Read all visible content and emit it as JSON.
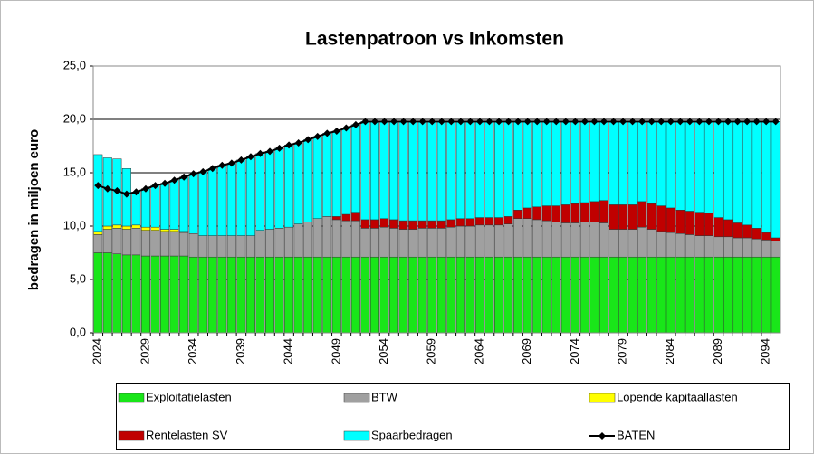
{
  "chart_data": {
    "type": "bar",
    "stacked": true,
    "title": "Lastenpatroon vs Inkomsten",
    "y_label": "bedragen in miljoen euro",
    "categories": [
      "2024",
      null,
      null,
      null,
      null,
      "2029",
      null,
      null,
      null,
      null,
      "2034",
      null,
      null,
      null,
      null,
      "2039",
      null,
      null,
      null,
      null,
      "2044",
      null,
      null,
      null,
      null,
      "2049",
      null,
      null,
      null,
      null,
      "2054",
      null,
      null,
      null,
      null,
      "2059",
      null,
      null,
      null,
      null,
      "2064",
      null,
      null,
      null,
      null,
      "2069",
      null,
      null,
      null,
      null,
      "2074",
      null,
      null,
      null,
      null,
      "2079",
      null,
      null,
      null,
      null,
      "2084",
      null,
      null,
      null,
      null,
      "2089",
      null,
      null,
      null,
      null,
      "2094",
      null
    ],
    "ylim": [
      0,
      25
    ],
    "yticks": [
      {
        "value": 0,
        "label": "0,0"
      },
      {
        "value": 5,
        "label": "5,0"
      },
      {
        "value": 10,
        "label": "10,0"
      },
      {
        "value": 15,
        "label": "15,0"
      },
      {
        "value": 20,
        "label": "20,0"
      },
      {
        "value": 25,
        "label": "25,0"
      }
    ],
    "grid": true,
    "series": [
      {
        "name": "Exploitatielasten",
        "color": "#19e619",
        "values": [
          7.5,
          7.5,
          7.4,
          7.3,
          7.3,
          7.2,
          7.2,
          7.2,
          7.2,
          7.2,
          7.1,
          7.1,
          7.1,
          7.1,
          7.1,
          7.1,
          7.1,
          7.1,
          7.1,
          7.1,
          7.1,
          7.1,
          7.1,
          7.1,
          7.1,
          7.1,
          7.1,
          7.1,
          7.1,
          7.1,
          7.1,
          7.1,
          7.1,
          7.1,
          7.1,
          7.1,
          7.1,
          7.1,
          7.1,
          7.1,
          7.1,
          7.1,
          7.1,
          7.1,
          7.1,
          7.1,
          7.1,
          7.1,
          7.1,
          7.1,
          7.1,
          7.1,
          7.1,
          7.1,
          7.1,
          7.1,
          7.1,
          7.1,
          7.1,
          7.1,
          7.1,
          7.1,
          7.1,
          7.1,
          7.1,
          7.1,
          7.1,
          7.1,
          7.1,
          7.1,
          7.1,
          7.1
        ]
      },
      {
        "name": "BTW",
        "color": "#a0a0a0",
        "values": [
          1.7,
          2.2,
          2.4,
          2.4,
          2.5,
          2.4,
          2.4,
          2.3,
          2.3,
          2.2,
          2.2,
          2.0,
          2.0,
          2.0,
          2.0,
          2.0,
          2.0,
          2.5,
          2.6,
          2.7,
          2.8,
          3.1,
          3.3,
          3.6,
          3.8,
          3.5,
          3.4,
          3.4,
          2.7,
          2.7,
          2.8,
          2.7,
          2.6,
          2.6,
          2.7,
          2.7,
          2.7,
          2.8,
          2.9,
          2.9,
          3.0,
          3.0,
          3.0,
          3.1,
          3.6,
          3.6,
          3.5,
          3.4,
          3.3,
          3.2,
          3.2,
          3.3,
          3.3,
          3.2,
          2.6,
          2.6,
          2.6,
          2.8,
          2.6,
          2.4,
          2.3,
          2.2,
          2.1,
          2.0,
          2.0,
          1.9,
          1.9,
          1.8,
          1.8,
          1.7,
          1.6,
          1.5
        ]
      },
      {
        "name": "Lopende kapitaallasten",
        "color": "#ffff00",
        "values": [
          0.3,
          0.3,
          0.3,
          0.3,
          0.3,
          0.3,
          0.3,
          0.2,
          0.2,
          0.1,
          0,
          0,
          0,
          0,
          0,
          0,
          0,
          0,
          0,
          0,
          0,
          0,
          0,
          0,
          0,
          0,
          0,
          0,
          0,
          0,
          0,
          0,
          0,
          0,
          0,
          0,
          0,
          0,
          0,
          0,
          0,
          0,
          0,
          0,
          0,
          0,
          0,
          0,
          0,
          0,
          0,
          0,
          0,
          0,
          0,
          0,
          0,
          0,
          0,
          0,
          0,
          0,
          0,
          0,
          0,
          0,
          0,
          0,
          0,
          0,
          0,
          0
        ]
      },
      {
        "name": "Rentelasten SV",
        "color": "#c00000",
        "values": [
          0,
          0,
          0,
          0,
          0,
          0,
          0,
          0,
          0,
          0,
          0,
          0,
          0,
          0,
          0,
          0,
          0,
          0,
          0,
          0,
          0,
          0,
          0,
          0,
          0,
          0.3,
          0.6,
          0.8,
          0.8,
          0.8,
          0.8,
          0.8,
          0.8,
          0.8,
          0.7,
          0.7,
          0.7,
          0.7,
          0.7,
          0.7,
          0.7,
          0.7,
          0.7,
          0.7,
          0.8,
          1.0,
          1.2,
          1.4,
          1.5,
          1.7,
          1.8,
          1.8,
          1.9,
          2.1,
          2.3,
          2.3,
          2.3,
          2.4,
          2.4,
          2.4,
          2.3,
          2.2,
          2.2,
          2.2,
          2.1,
          1.8,
          1.6,
          1.4,
          1.2,
          1.0,
          0.7,
          0.3
        ]
      },
      {
        "name": "Spaarbedragen",
        "color": "#00ffff",
        "values": [
          7.2,
          6.4,
          6.2,
          5.4,
          3.1,
          3.6,
          3.9,
          4.3,
          4.6,
          5.1,
          5.6,
          6.0,
          6.3,
          6.6,
          6.8,
          7.1,
          7.4,
          7.2,
          7.3,
          7.5,
          7.7,
          7.6,
          7.7,
          7.7,
          7.8,
          8.0,
          8.1,
          8.2,
          9.2,
          9.2,
          9.1,
          9.2,
          9.3,
          9.3,
          9.3,
          9.3,
          9.3,
          9.2,
          9.1,
          9.1,
          9.0,
          9.0,
          9.0,
          8.9,
          8.3,
          8.1,
          8.0,
          7.9,
          7.9,
          7.8,
          7.7,
          7.6,
          7.5,
          7.4,
          7.8,
          7.8,
          7.8,
          7.5,
          7.7,
          7.9,
          8.1,
          8.3,
          8.4,
          8.5,
          8.6,
          9.0,
          9.2,
          9.5,
          9.7,
          10.0,
          10.4,
          10.9
        ]
      },
      {
        "name": "BATEN",
        "type": "line",
        "color": "#000000",
        "values": [
          13.8,
          13.5,
          13.3,
          13.0,
          13.2,
          13.5,
          13.8,
          14.0,
          14.3,
          14.6,
          14.9,
          15.1,
          15.4,
          15.7,
          15.9,
          16.2,
          16.5,
          16.8,
          17.0,
          17.3,
          17.6,
          17.8,
          18.1,
          18.4,
          18.7,
          18.9,
          19.2,
          19.5,
          19.8,
          19.8,
          19.8,
          19.8,
          19.8,
          19.8,
          19.8,
          19.8,
          19.8,
          19.8,
          19.8,
          19.8,
          19.8,
          19.8,
          19.8,
          19.8,
          19.8,
          19.8,
          19.8,
          19.8,
          19.8,
          19.8,
          19.8,
          19.8,
          19.8,
          19.8,
          19.8,
          19.8,
          19.8,
          19.8,
          19.8,
          19.8,
          19.8,
          19.8,
          19.8,
          19.8,
          19.8,
          19.8,
          19.8,
          19.8,
          19.8,
          19.8,
          19.8,
          19.8
        ]
      }
    ]
  }
}
